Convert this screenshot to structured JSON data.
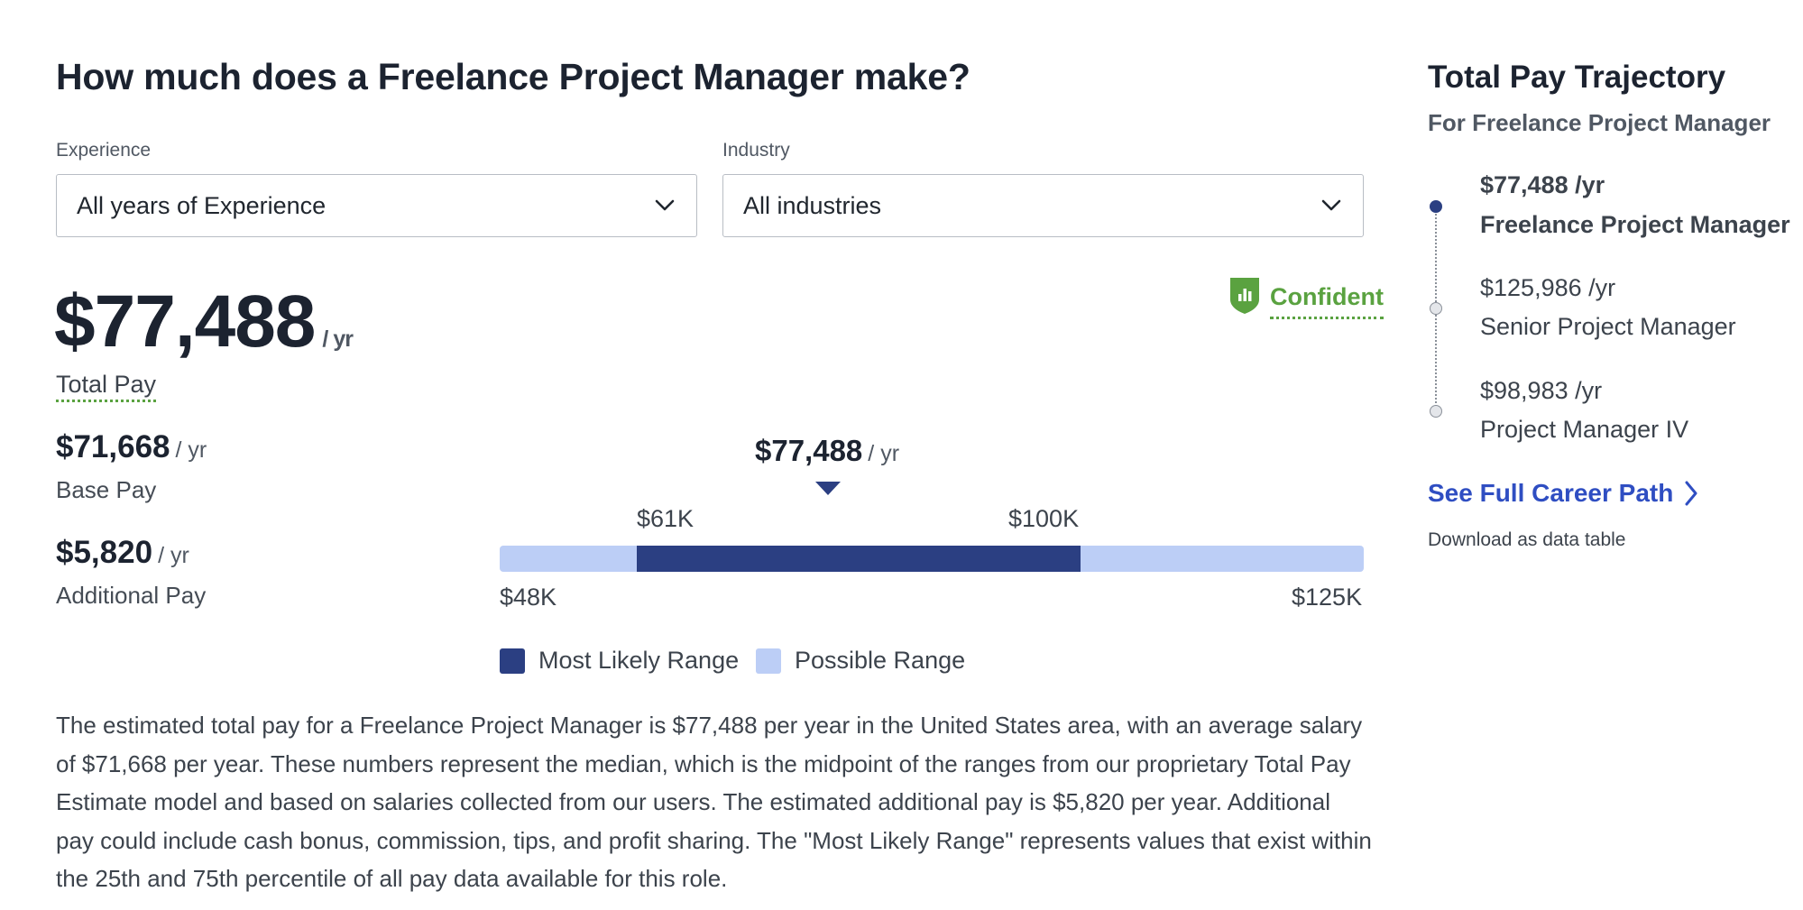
{
  "header": {
    "title": "How much does a Freelance Project Manager make?"
  },
  "filters": {
    "experience": {
      "label": "Experience",
      "value": "All years of Experience"
    },
    "industry": {
      "label": "Industry",
      "value": "All industries"
    }
  },
  "total_pay": {
    "amount": "$77,488",
    "unit": "/ yr",
    "label": "Total Pay"
  },
  "base_pay": {
    "amount": "$71,668",
    "unit": "/ yr",
    "label": "Base Pay"
  },
  "additional_pay": {
    "amount": "$5,820",
    "unit": "/ yr",
    "label": "Additional Pay"
  },
  "confidence": {
    "label": "Confident",
    "color": "#5aa240"
  },
  "range_chart": {
    "median_label": "$77,488",
    "median_unit": "/ yr",
    "likely_low": "$61K",
    "likely_high": "$100K",
    "min": "$48K",
    "max": "$125K",
    "legend": {
      "likely": "Most Likely Range",
      "possible": "Possible Range"
    },
    "colors": {
      "likely": "#2b3f82",
      "possible": "#bccef6"
    }
  },
  "description": "The estimated total pay for a Freelance Project Manager is $77,488 per year in the United States area, with an average salary of $71,668 per year. These numbers represent the median, which is the midpoint of the ranges from our proprietary Total Pay Estimate model and based on salaries collected from our users. The estimated additional pay is $5,820 per year. Additional pay could include cash bonus, commission, tips, and profit sharing. The \"Most Likely Range\" represents values that exist within the 25th and 75th percentile of all pay data available for this role.",
  "trajectory": {
    "title": "Total Pay Trajectory",
    "subtitle": "For Freelance Project Manager",
    "items": [
      {
        "salary": "$77,488 /yr",
        "title": "Freelance Project Manager"
      },
      {
        "salary": "$125,986 /yr",
        "title": "Senior Project Manager"
      },
      {
        "salary": "$98,983 /yr",
        "title": "Project Manager IV"
      }
    ],
    "career_link": "See Full Career Path",
    "download": "Download as data table"
  },
  "icons": {
    "dropdown": "chevron-down-icon",
    "confidence": "shield-bar-chart-icon",
    "median_marker": "triangle-down-icon",
    "career_link": "chevron-right-icon"
  }
}
